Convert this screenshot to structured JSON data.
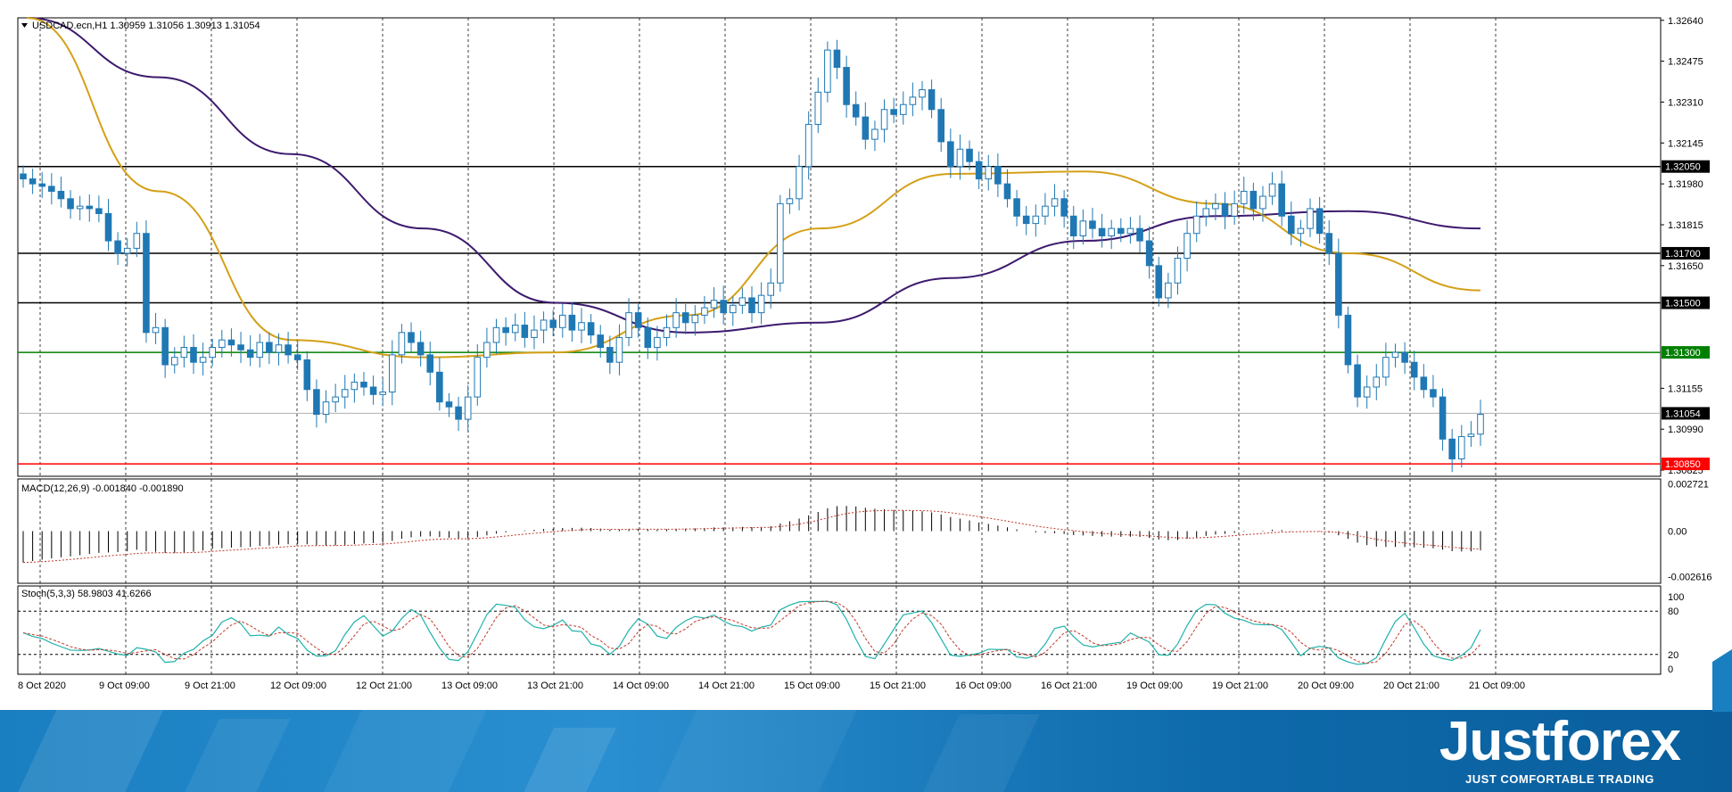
{
  "chart_title": "USDCAD.ecn,H1  1.30959 1.31056 1.30913 1.31054",
  "macd_title": "MACD(12,26,9) -0.001840 -0.001890",
  "stoch_title": "Stoch(5,3,3) 58.9803 41.6266",
  "brand": {
    "name": "Justforex",
    "tagline": "JUST COMFORTABLE TRADING"
  },
  "colors": {
    "bull_body": "#ffffff",
    "bear_body": "#1f78b4",
    "candle_outline": "#1f78b4",
    "ma_slow": "#3d1a6e",
    "ma_fast": "#d4a017",
    "macd_signal": "#c0392b",
    "stoch_main": "#20b2aa",
    "stoch_signal": "#c0392b",
    "level_black": "#000000",
    "level_green": "#008000",
    "level_red": "#ff0000",
    "current_price_line": "#b0b0b0"
  },
  "chart_data": [
    {
      "type": "candlestick",
      "symbol": "USDCAD.ecn",
      "timeframe": "H1",
      "ohlc_header": {
        "open": 1.30959,
        "high": 1.31056,
        "low": 1.30913,
        "close": 1.31054
      },
      "x_tick_labels": [
        "8 Oct 2020",
        "9 Oct 09:00",
        "9 Oct 21:00",
        "12 Oct 09:00",
        "12 Oct 21:00",
        "13 Oct 09:00",
        "13 Oct 21:00",
        "14 Oct 09:00",
        "14 Oct 21:00",
        "15 Oct 09:00",
        "15 Oct 21:00",
        "16 Oct 09:00",
        "16 Oct 21:00",
        "19 Oct 09:00",
        "19 Oct 21:00",
        "20 Oct 09:00",
        "20 Oct 21:00",
        "21 Oct 09:00"
      ],
      "y_tick_labels": [
        "1.32640",
        "1.32475",
        "1.32310",
        "1.32145",
        "1.31980",
        "1.31815",
        "1.31650",
        "1.31155",
        "1.30990",
        "1.30825"
      ],
      "y_range": [
        1.308,
        1.3265
      ],
      "horizontal_levels": [
        {
          "price": 1.3205,
          "label": "1.32050",
          "color": "#000000"
        },
        {
          "price": 1.317,
          "label": "1.31700",
          "color": "#000000"
        },
        {
          "price": 1.315,
          "label": "1.31500",
          "color": "#000000"
        },
        {
          "price": 1.313,
          "label": "1.31300",
          "color": "#008000"
        },
        {
          "price": 1.3085,
          "label": "1.30850",
          "color": "#ff0000"
        }
      ],
      "current_price": {
        "price": 1.31054,
        "label": "1.31054"
      },
      "closes": [
        1.32,
        1.3198,
        1.3197,
        1.3195,
        1.3192,
        1.3188,
        1.3189,
        1.3188,
        1.3186,
        1.3175,
        1.317,
        1.3172,
        1.3178,
        1.3138,
        1.314,
        1.3125,
        1.3128,
        1.3132,
        1.3126,
        1.3128,
        1.3132,
        1.3135,
        1.3133,
        1.3131,
        1.3128,
        1.3134,
        1.313,
        1.3133,
        1.3129,
        1.3127,
        1.3115,
        1.3105,
        1.311,
        1.3112,
        1.3115,
        1.3118,
        1.3116,
        1.3113,
        1.3114,
        1.3129,
        1.3138,
        1.3134,
        1.3129,
        1.3122,
        1.311,
        1.3108,
        1.3103,
        1.3112,
        1.3128,
        1.3134,
        1.314,
        1.3138,
        1.3141,
        1.3136,
        1.3139,
        1.3143,
        1.314,
        1.3145,
        1.3139,
        1.3142,
        1.3137,
        1.3132,
        1.3126,
        1.3136,
        1.3146,
        1.314,
        1.3132,
        1.3136,
        1.314,
        1.3146,
        1.3142,
        1.3145,
        1.3148,
        1.3151,
        1.3146,
        1.3149,
        1.3152,
        1.3146,
        1.3153,
        1.3158,
        1.319,
        1.3192,
        1.3205,
        1.3222,
        1.3235,
        1.3252,
        1.3245,
        1.323,
        1.3225,
        1.3216,
        1.322,
        1.3228,
        1.3226,
        1.323,
        1.3233,
        1.3236,
        1.3228,
        1.3215,
        1.3205,
        1.3212,
        1.3207,
        1.32,
        1.3205,
        1.3198,
        1.3192,
        1.3185,
        1.3182,
        1.3185,
        1.3189,
        1.3192,
        1.3185,
        1.3177,
        1.3183,
        1.318,
        1.3177,
        1.318,
        1.3178,
        1.318,
        1.3175,
        1.3165,
        1.3152,
        1.3158,
        1.3168,
        1.3178,
        1.3185,
        1.3188,
        1.319,
        1.3185,
        1.319,
        1.3195,
        1.3188,
        1.3193,
        1.3198,
        1.3185,
        1.3178,
        1.318,
        1.3188,
        1.3178,
        1.317,
        1.3145,
        1.3125,
        1.3112,
        1.3116,
        1.312,
        1.3128,
        1.313,
        1.3126,
        1.312,
        1.3115,
        1.3112,
        1.3095,
        1.3087,
        1.3096,
        1.3097,
        1.3105
      ],
      "series": [
        {
          "name": "MA slow",
          "color": "#3d1a6e",
          "values": [
            1.3265,
            1.3241,
            1.321,
            1.318,
            1.315,
            1.3138,
            1.3142,
            1.316,
            1.3175,
            1.3185,
            1.3187,
            1.318
          ]
        },
        {
          "name": "MA fast",
          "color": "#d4a017",
          "values": [
            1.3265,
            1.3195,
            1.3135,
            1.3128,
            1.313,
            1.3145,
            1.318,
            1.3202,
            1.3203,
            1.319,
            1.317,
            1.3155
          ]
        }
      ]
    },
    {
      "type": "bar",
      "indicator": "MACD(12,26,9)",
      "values_header": {
        "macd": -0.00184,
        "signal": -0.00189
      },
      "y_tick_labels": [
        "0.002721",
        "0.00",
        "-0.002616"
      ],
      "y_range": [
        -0.003,
        0.003
      ]
    },
    {
      "type": "line",
      "indicator": "Stoch(5,3,3)",
      "values_header": {
        "main": 58.9803,
        "signal": 41.6266
      },
      "y_tick_labels": [
        "100",
        "80",
        "20",
        "0"
      ],
      "levels": [
        80,
        20
      ],
      "y_range": [
        0,
        100
      ]
    }
  ]
}
